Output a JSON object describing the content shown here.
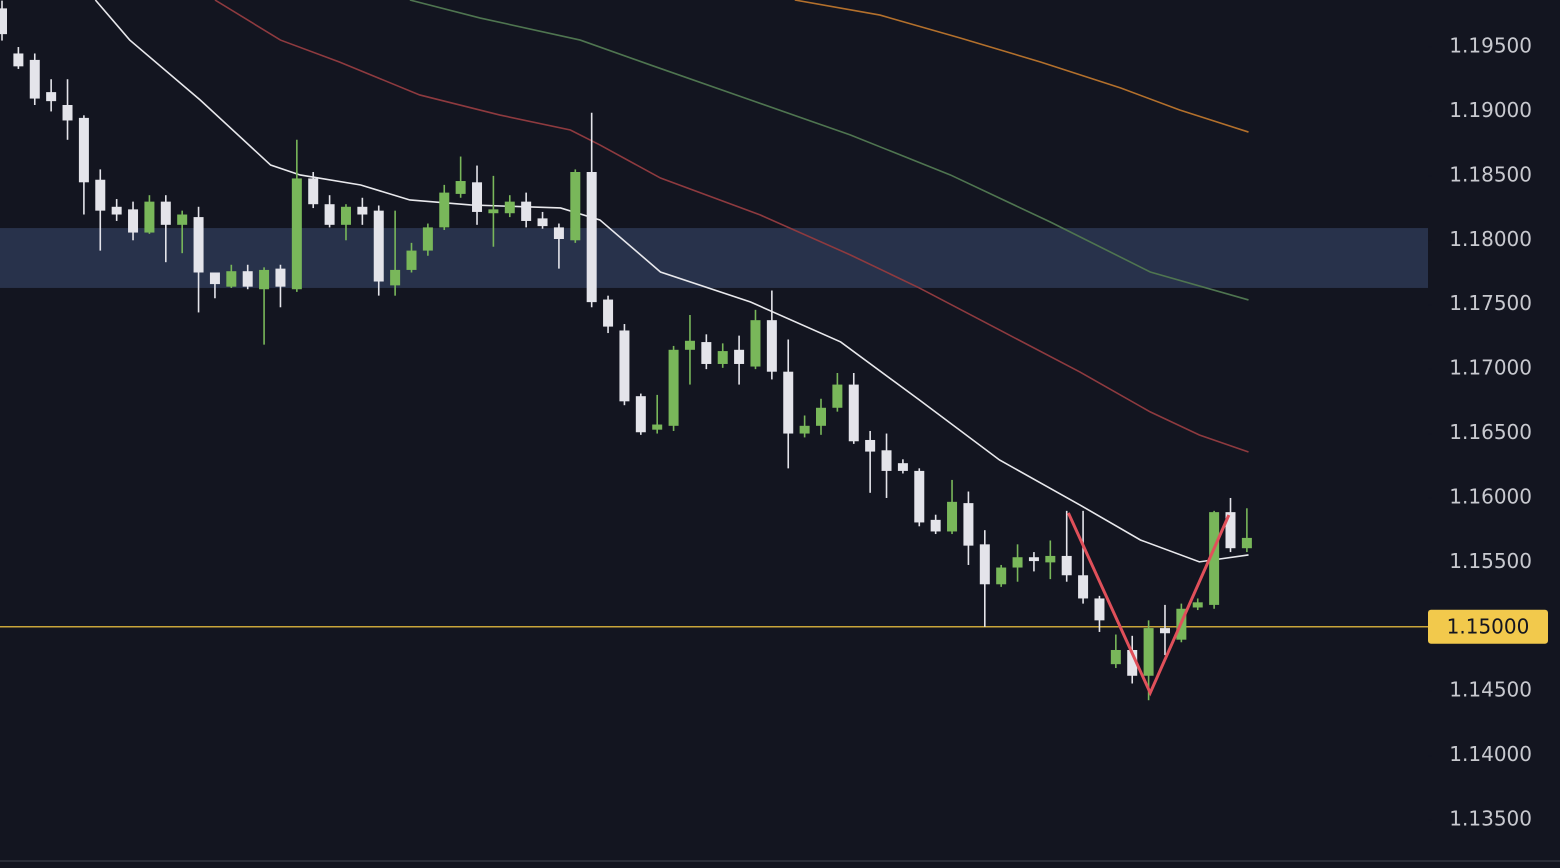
{
  "chart_data": {
    "type": "candlestick",
    "ylim": [
      1.1319,
      1.19865
    ],
    "yticks": [
      {
        "value": 1.195,
        "label": "1.19500"
      },
      {
        "value": 1.19,
        "label": "1.19000"
      },
      {
        "value": 1.185,
        "label": "1.18500"
      },
      {
        "value": 1.18,
        "label": "1.18000"
      },
      {
        "value": 1.175,
        "label": "1.17500"
      },
      {
        "value": 1.17,
        "label": "1.17000"
      },
      {
        "value": 1.165,
        "label": "1.16500"
      },
      {
        "value": 1.16,
        "label": "1.16000"
      },
      {
        "value": 1.155,
        "label": "1.15500"
      },
      {
        "value": 1.145,
        "label": "1.14500"
      },
      {
        "value": 1.14,
        "label": "1.14000"
      },
      {
        "value": 1.135,
        "label": "1.13500"
      }
    ],
    "up_color": "#79b75a",
    "down_color": "#e4e4ea",
    "open": [
      1.198,
      1.1945,
      1.194,
      1.1915,
      1.1905,
      1.1895,
      1.1847,
      1.1826,
      1.1824,
      1.1806,
      1.183,
      1.1812,
      1.1818,
      1.1775,
      1.1764,
      1.1776,
      1.1762,
      1.1778,
      1.1762,
      1.1848,
      1.1828,
      1.1812,
      1.1826,
      1.1823,
      1.1765,
      1.1777,
      1.1792,
      1.181,
      1.1836,
      1.1845,
      1.1821,
      1.1821,
      1.183,
      1.1817,
      1.181,
      1.18,
      1.1853,
      1.1754,
      1.173,
      1.1679,
      1.1653,
      1.1656,
      1.1715,
      1.1721,
      1.1704,
      1.1715,
      1.1702,
      1.1738,
      1.1698,
      1.165,
      1.1656,
      1.167,
      1.1688,
      1.1645,
      1.1637,
      1.1627,
      1.1621,
      1.1583,
      1.1574,
      1.1596,
      1.1564,
      1.1533,
      1.1546,
      1.1554,
      1.155,
      1.1555,
      1.154,
      1.1522,
      1.1471,
      1.1482,
      1.1462,
      1.1499,
      1.149,
      1.1515,
      1.1517,
      1.1589,
      1.1561
    ],
    "high": [
      1.1986,
      1.195,
      1.1945,
      1.1925,
      1.1925,
      1.1897,
      1.1855,
      1.1832,
      1.183,
      1.1835,
      1.1835,
      1.1823,
      1.1826,
      1.1775,
      1.1781,
      1.1781,
      1.1779,
      1.1781,
      1.1878,
      1.1853,
      1.1835,
      1.1828,
      1.1833,
      1.1827,
      1.1823,
      1.1798,
      1.1813,
      1.1843,
      1.1865,
      1.1858,
      1.185,
      1.1835,
      1.1837,
      1.1822,
      1.1813,
      1.1855,
      1.1899,
      1.1757,
      1.1735,
      1.1681,
      1.168,
      1.1718,
      1.1742,
      1.1727,
      1.172,
      1.1726,
      1.1746,
      1.1761,
      1.1723,
      1.1664,
      1.1677,
      1.1697,
      1.1697,
      1.1652,
      1.165,
      1.163,
      1.1623,
      1.1587,
      1.1614,
      1.1605,
      1.1575,
      1.1548,
      1.1564,
      1.1558,
      1.1567,
      1.159,
      1.159,
      1.1524,
      1.1494,
      1.1493,
      1.1505,
      1.1517,
      1.1518,
      1.1522,
      1.159,
      1.16,
      1.1592
    ],
    "low": [
      1.1955,
      1.1933,
      1.1905,
      1.19,
      1.1878,
      1.182,
      1.1792,
      1.1815,
      1.18,
      1.1805,
      1.1783,
      1.179,
      1.1744,
      1.1755,
      1.1763,
      1.1762,
      1.1719,
      1.1748,
      1.176,
      1.1825,
      1.181,
      1.18,
      1.1812,
      1.1757,
      1.1757,
      1.1775,
      1.1788,
      1.1808,
      1.1833,
      1.1812,
      1.1795,
      1.1818,
      1.181,
      1.1809,
      1.1778,
      1.1798,
      1.1748,
      1.1728,
      1.1672,
      1.1649,
      1.165,
      1.1652,
      1.1688,
      1.17,
      1.1701,
      1.1688,
      1.17,
      1.1692,
      1.1623,
      1.1647,
      1.1649,
      1.1667,
      1.1642,
      1.1604,
      1.16,
      1.1619,
      1.1578,
      1.1572,
      1.1572,
      1.1548,
      1.15,
      1.1531,
      1.1535,
      1.1543,
      1.1537,
      1.1535,
      1.1518,
      1.1496,
      1.1468,
      1.1456,
      1.1443,
      1.1478,
      1.1488,
      1.1513,
      1.1514,
      1.1558,
      1.1558
    ],
    "close": [
      1.196,
      1.1935,
      1.191,
      1.1908,
      1.1893,
      1.1845,
      1.1823,
      1.182,
      1.1806,
      1.183,
      1.1812,
      1.182,
      1.1775,
      1.1766,
      1.1776,
      1.1764,
      1.1777,
      1.1764,
      1.1848,
      1.1828,
      1.1812,
      1.1826,
      1.182,
      1.1768,
      1.1777,
      1.1792,
      1.181,
      1.1837,
      1.1846,
      1.1822,
      1.1824,
      1.183,
      1.1815,
      1.1811,
      1.1801,
      1.1853,
      1.1752,
      1.1733,
      1.1675,
      1.1651,
      1.1657,
      1.1715,
      1.1722,
      1.1704,
      1.1714,
      1.1704,
      1.1738,
      1.1698,
      1.165,
      1.1656,
      1.167,
      1.1688,
      1.1644,
      1.1636,
      1.1621,
      1.1621,
      1.1581,
      1.1574,
      1.1597,
      1.1563,
      1.1533,
      1.1546,
      1.1554,
      1.1551,
      1.1555,
      1.154,
      1.1522,
      1.1505,
      1.1482,
      1.1462,
      1.1499,
      1.1495,
      1.1514,
      1.1519,
      1.1589,
      1.1561,
      1.1569
    ],
    "lines": [
      {
        "color": "#e8e8ec",
        "x": [
          5.7,
          7.8,
          12.1,
          16.4,
          18.2,
          21.9,
          24.9,
          28.6,
          34.1,
          36.5,
          40.2,
          45.7,
          51.2,
          56.0,
          60.9,
          65.8,
          69.5,
          73.1,
          76.1
        ],
        "values": [
          1.19865,
          1.19554,
          1.19089,
          1.18584,
          1.18507,
          1.18429,
          1.18313,
          1.18274,
          1.18251,
          1.18158,
          1.17754,
          1.17521,
          1.17211,
          1.16761,
          1.16295,
          1.15946,
          1.15674,
          1.15504,
          1.15558
        ]
      },
      {
        "color": "#8e3a3f",
        "x": [
          13.0,
          17.0,
          20.6,
          25.5,
          30.4,
          34.7,
          36.5,
          40.2,
          46.3,
          51.8,
          56.0,
          60.9,
          65.8,
          70.1,
          73.1,
          76.1
        ],
        "values": [
          1.19865,
          1.19554,
          1.19384,
          1.19128,
          1.18972,
          1.18856,
          1.1874,
          1.18483,
          1.18196,
          1.17886,
          1.1763,
          1.17304,
          1.16978,
          1.16668,
          1.16489,
          1.16357
        ]
      },
      {
        "color": "#4f7550",
        "x": [
          24.9,
          29.2,
          35.3,
          39.6,
          45.7,
          51.8,
          57.9,
          64.0,
          70.1,
          76.1
        ],
        "values": [
          1.19865,
          1.19725,
          1.19554,
          1.1936,
          1.19089,
          1.18817,
          1.18507,
          1.18142,
          1.17754,
          1.17537
        ]
      },
      {
        "color": "#b3702c",
        "x": [
          48.4,
          53.6,
          58.5,
          63.4,
          68.3,
          71.9,
          76.1
        ],
        "values": [
          1.19865,
          1.19748,
          1.1957,
          1.19384,
          1.19182,
          1.19011,
          1.1884
        ]
      },
      {
        "color": "#e0505a",
        "x": [
          65.1,
          70.1,
          74.9
        ],
        "values": [
          1.15884,
          1.14487,
          1.15868
        ]
      }
    ],
    "zone": {
      "color": "#2b3550",
      "values": [
        1.18095,
        1.1763
      ]
    },
    "hline": {
      "color": "#c9a53a",
      "value": 1.15,
      "label": "1.15000"
    }
  }
}
